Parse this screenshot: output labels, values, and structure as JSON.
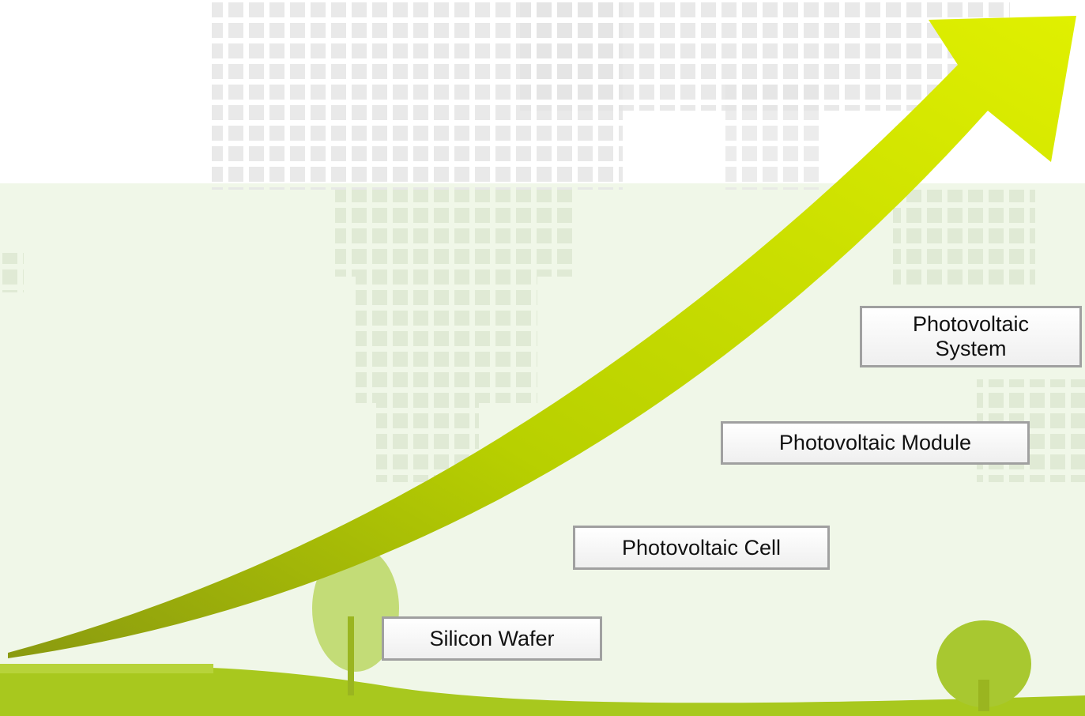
{
  "steps": [
    {
      "label": "Silicon Wafer"
    },
    {
      "label": "Photovoltaic Cell"
    },
    {
      "label": "Photovoltaic Module"
    },
    {
      "label": "Photovoltaic System"
    }
  ]
}
